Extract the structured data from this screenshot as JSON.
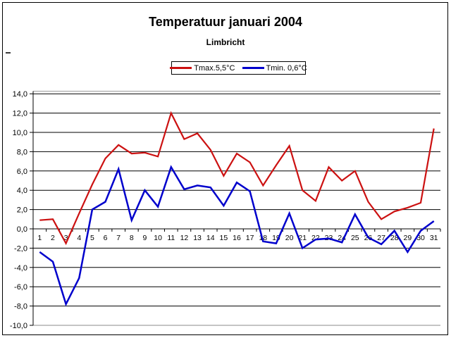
{
  "page": {
    "background": "#ffffff",
    "border_color": "#000000"
  },
  "stray_mark": "-",
  "legend": {
    "entries": [
      {
        "label": "Tmax.5,5°C",
        "color": "#cc1111"
      },
      {
        "label": "Tmin. 0,6°C",
        "color": "#0000cc"
      }
    ]
  },
  "chart_data": {
    "type": "line",
    "title": "Temperatuur januari 2004",
    "subtitle": "Limbricht",
    "xlabel": "",
    "ylabel": "",
    "x": [
      1,
      2,
      3,
      4,
      5,
      6,
      7,
      8,
      9,
      10,
      11,
      12,
      13,
      14,
      15,
      16,
      17,
      18,
      19,
      20,
      21,
      22,
      23,
      24,
      25,
      26,
      27,
      28,
      29,
      30,
      31
    ],
    "x_tick_labels": [
      "1",
      "2",
      "3",
      "4",
      "5",
      "6",
      "7",
      "8",
      "9",
      "10",
      "11",
      "12",
      "13",
      "14",
      "15",
      "16",
      "17",
      "18",
      "19",
      "20",
      "21",
      "22",
      "23",
      "24",
      "25",
      "26",
      "27",
      "28",
      "29",
      "30",
      "31"
    ],
    "series": [
      {
        "name": "Tmax.5,5°C",
        "color": "#cc1111",
        "mean_label": "5,5",
        "values": [
          0.9,
          1.0,
          -1.5,
          1.6,
          4.6,
          7.3,
          8.7,
          7.8,
          7.9,
          7.5,
          12.0,
          9.3,
          9.9,
          8.2,
          5.5,
          7.8,
          6.9,
          4.5,
          6.6,
          8.6,
          4.0,
          2.9,
          6.4,
          5.0,
          6.0,
          2.8,
          1.0,
          1.8,
          2.2,
          2.7,
          10.4
        ]
      },
      {
        "name": "Tmin. 0,6°C",
        "color": "#0000cc",
        "mean_label": "0,6",
        "values": [
          -2.4,
          -3.4,
          -7.8,
          -5.1,
          2.0,
          2.8,
          6.2,
          0.9,
          4.0,
          2.3,
          6.4,
          4.1,
          4.5,
          4.3,
          2.4,
          4.8,
          3.9,
          -1.3,
          -1.5,
          1.6,
          -2.0,
          -1.1,
          -1.0,
          -1.4,
          1.5,
          -0.9,
          -1.6,
          -0.2,
          -2.4,
          -0.2,
          0.8
        ]
      }
    ],
    "ylim": [
      -10,
      14
    ],
    "yticks": [
      14,
      12,
      10,
      8,
      6,
      4,
      2,
      0,
      -2,
      -4,
      -6,
      -8,
      -10
    ],
    "ytick_labels": [
      "14,0",
      "12,0",
      "10,0",
      "8,0",
      "6,0",
      "4,0",
      "2,0",
      "0,0",
      "-2,0",
      "-4,0",
      "-6,0",
      "-8,0",
      "-10,0"
    ],
    "decimal_separator": ",",
    "grid": true,
    "gridline_color": "#000000",
    "legend_position": "top-center"
  }
}
